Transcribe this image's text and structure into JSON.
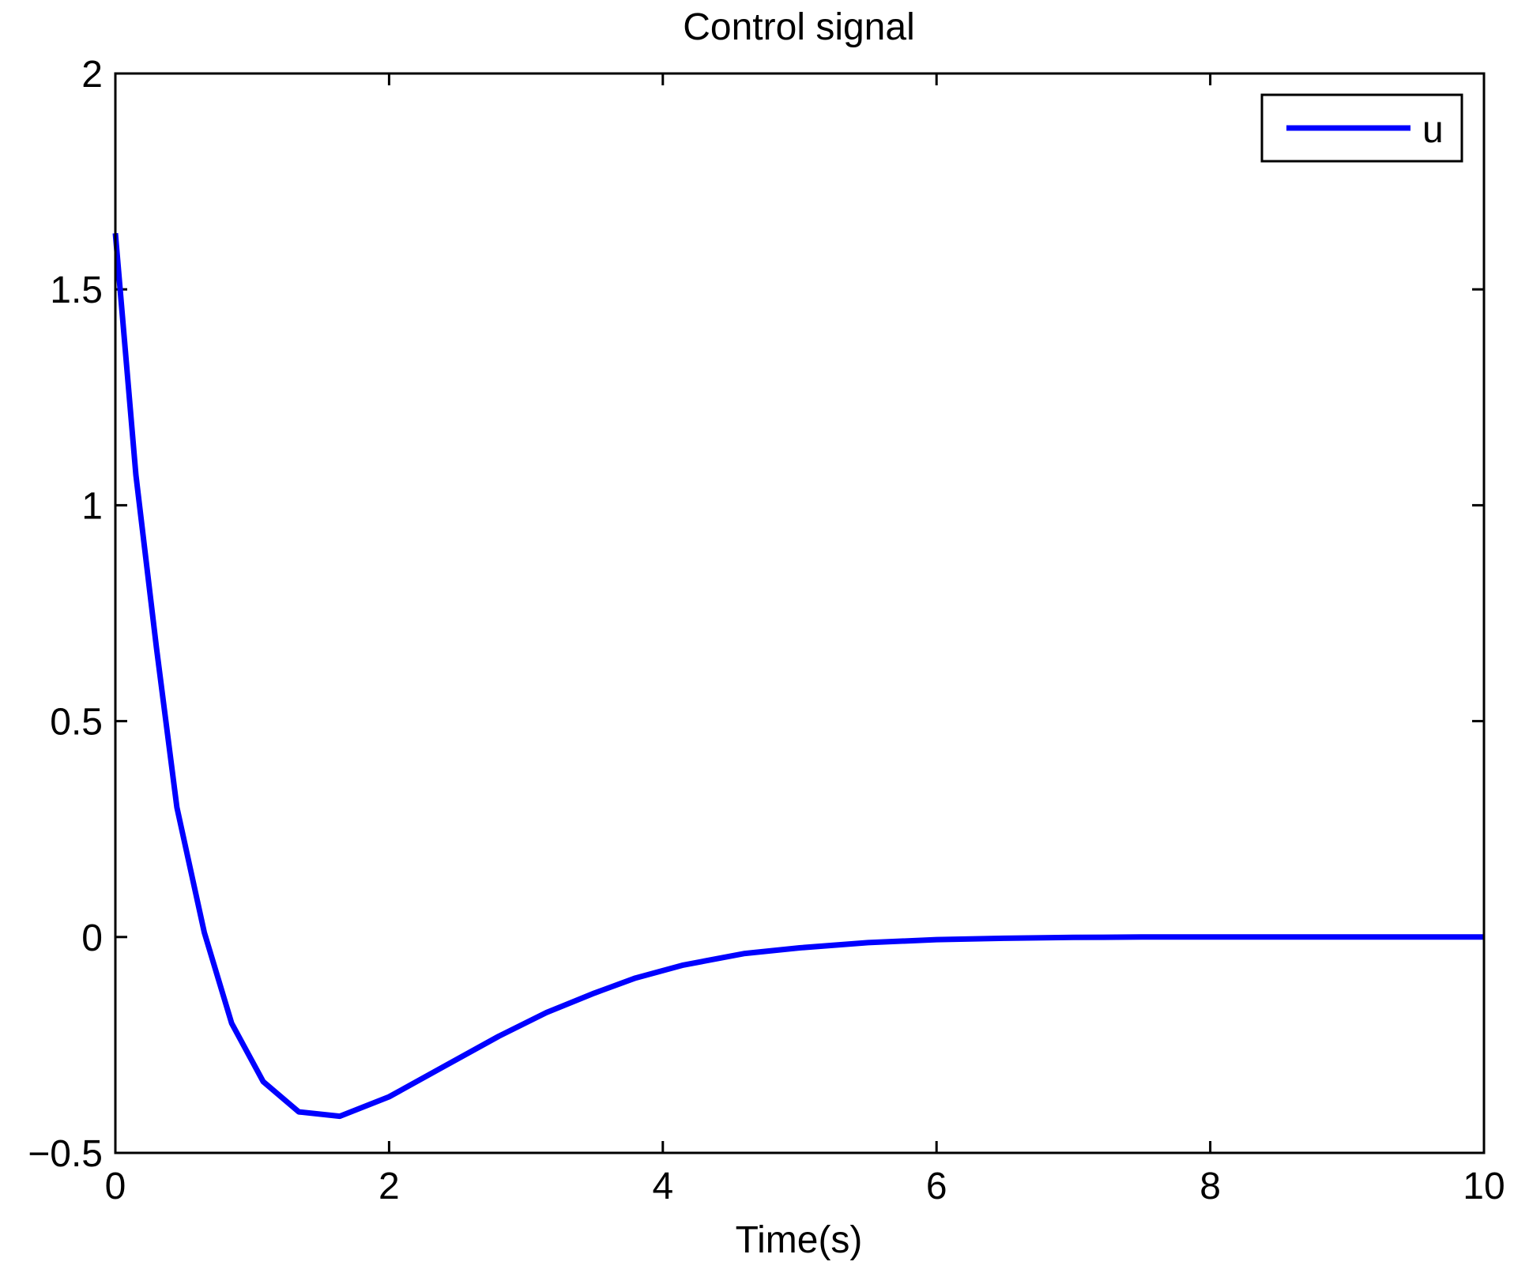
{
  "chart_data": {
    "type": "line",
    "title": "Control signal",
    "xlabel": "Time(s)",
    "ylabel": "",
    "xlim": [
      0,
      10
    ],
    "ylim": [
      -0.5,
      2
    ],
    "xticks": [
      0,
      2,
      4,
      6,
      8,
      10
    ],
    "xtick_labels": [
      "0",
      "2",
      "4",
      "6",
      "8",
      "10"
    ],
    "yticks": [
      -0.5,
      0,
      0.5,
      1,
      1.5,
      2
    ],
    "ytick_labels": [
      "−0.5",
      "0",
      "0.5",
      "1",
      "1.5",
      "2"
    ],
    "grid": false,
    "legend_position": "top-right",
    "series": [
      {
        "name": "u",
        "color": "#0000ff",
        "x": [
          0,
          0.15,
          0.3,
          0.45,
          0.65,
          0.85,
          1.08,
          1.34,
          1.64,
          2.0,
          2.4,
          2.8,
          3.15,
          3.5,
          3.8,
          4.15,
          4.6,
          5.0,
          5.5,
          6.0,
          6.5,
          7.0,
          7.5,
          8.0,
          9.0,
          10.0
        ],
        "y": [
          1.63,
          1.07,
          0.67,
          0.3,
          0.01,
          -0.2,
          -0.335,
          -0.405,
          -0.415,
          -0.37,
          -0.3,
          -0.23,
          -0.175,
          -0.13,
          -0.095,
          -0.065,
          -0.038,
          -0.025,
          -0.013,
          -0.006,
          -0.003,
          -0.001,
          0,
          0,
          0,
          0
        ]
      }
    ]
  }
}
